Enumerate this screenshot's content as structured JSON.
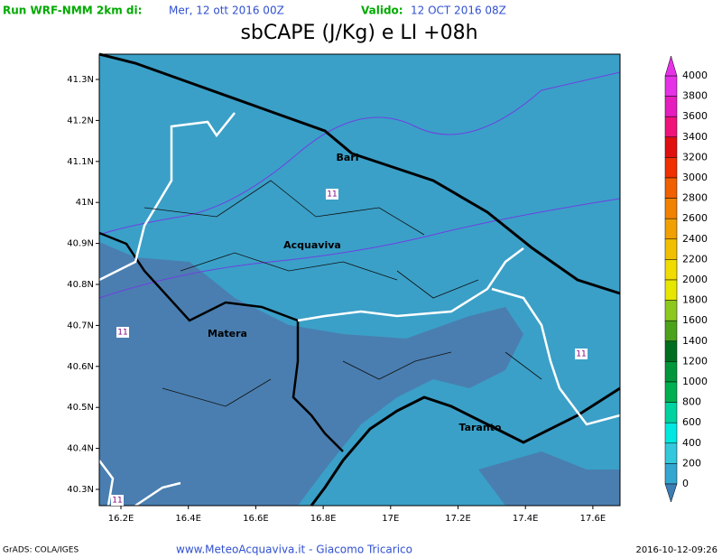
{
  "header": {
    "run": "Run WRF-NMM 2km di:",
    "init": "Mer, 12 ott 2016 00Z",
    "valid_label": "Valido:",
    "valid": "12 OCT 2016 08Z",
    "title": "sbCAPE (J/Kg) e LI +08h"
  },
  "map": {
    "lat_labels": [
      "41.3N",
      "41.2N",
      "41.1N",
      "41N",
      "40.9N",
      "40.8N",
      "40.7N",
      "40.6N",
      "40.5N",
      "40.4N",
      "40.3N"
    ],
    "lon_labels": [
      "16.2E",
      "16.4E",
      "16.6E",
      "16.8E",
      "17E",
      "17.2E",
      "17.4E",
      "17.6E"
    ],
    "cities": [
      "Bari",
      "Acquaviva",
      "Matera",
      "Taranto"
    ],
    "li_labels": [
      "11",
      "11",
      "11",
      "11"
    ]
  },
  "colorbar": {
    "labels": [
      4000,
      3800,
      3600,
      3400,
      3200,
      3000,
      2800,
      2600,
      2400,
      2200,
      2000,
      1800,
      1600,
      1400,
      1200,
      1000,
      800,
      600,
      400,
      200,
      0
    ],
    "colors": [
      "#e632e6",
      "#e61ebe",
      "#f0147a",
      "#e01010",
      "#f03000",
      "#f06000",
      "#f08200",
      "#f0a000",
      "#f0c000",
      "#f0dc00",
      "#e6e600",
      "#8cc81e",
      "#4ca21a",
      "#006e1e",
      "#00963c",
      "#00b050",
      "#00d2a0",
      "#00e8e0",
      "#33c8dc",
      "#33a7d0"
    ]
  },
  "footer": {
    "grads": "GrADS: COLA/IGES",
    "credit": "www.MeteoAcquaviva.it - Giacomo Tricarico",
    "timestamp": "2016-10-12-09:26"
  }
}
